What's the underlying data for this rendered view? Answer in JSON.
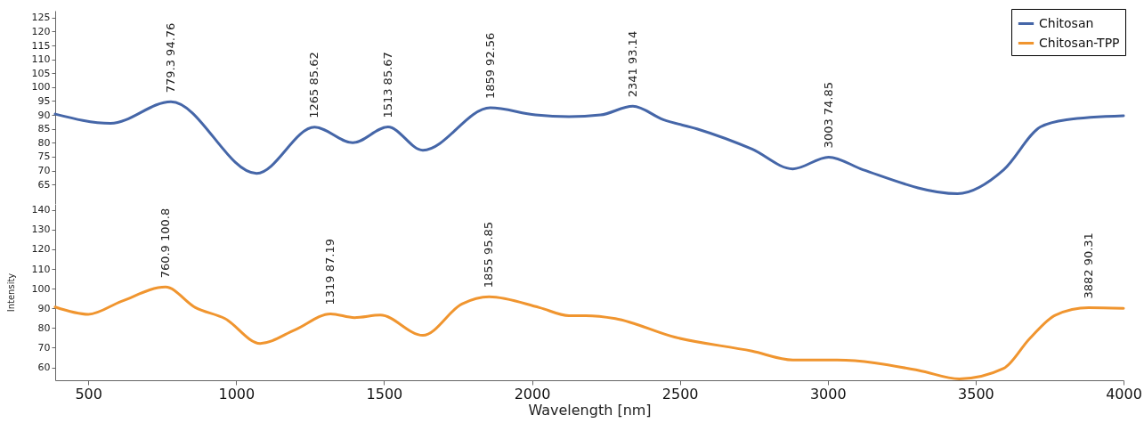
{
  "chart_data": [
    {
      "type": "line",
      "xlim": [
        388,
        4000
      ],
      "xticks": [
        500,
        1000,
        1500,
        2000,
        2500,
        3000,
        3500,
        4000
      ],
      "ylim": [
        58,
        127.5
      ],
      "yticks": [
        65,
        70,
        75,
        80,
        85,
        90,
        95,
        100,
        105,
        110,
        115,
        120,
        125
      ],
      "tick_labels": "y",
      "legend": "top right",
      "series": [
        {
          "name": "Chitosan",
          "color": "#4566a8",
          "x": [
            388,
            575,
            779.3,
            1069,
            1265,
            1394,
            1513,
            1631,
            1859,
            2012,
            2125,
            2232,
            2341,
            2444,
            2558,
            2744,
            2882,
            3003,
            3119,
            3439,
            3595,
            3719,
            3807,
            4000
          ],
          "values": [
            90.3,
            87,
            94.76,
            69,
            85.62,
            80,
            85.67,
            77.3,
            92.56,
            90,
            89.4,
            90,
            93.14,
            88.3,
            85,
            77.7,
            70.6,
            74.85,
            70.3,
            61.7,
            70.3,
            85.7,
            88.3,
            89.7
          ]
        }
      ],
      "annotations": [
        {
          "text": "779.3  94.76",
          "x": 779.3,
          "y": 94.76
        },
        {
          "text": "1265  85.62",
          "x": 1265,
          "y": 85.62
        },
        {
          "text": "1513  85.67",
          "x": 1513,
          "y": 85.67
        },
        {
          "text": "1859  92.56",
          "x": 1859,
          "y": 92.56
        },
        {
          "text": "2341  93.14",
          "x": 2341,
          "y": 93.14
        },
        {
          "text": "3003  74.85",
          "x": 3003,
          "y": 74.85
        }
      ]
    },
    {
      "type": "line",
      "xlabel": "Wavelength [nm]",
      "ylabel": "Intensity",
      "xlim": [
        388,
        4000
      ],
      "xticks": [
        500,
        1000,
        1500,
        2000,
        2500,
        3000,
        3500,
        4000
      ],
      "ylim": [
        53.5,
        143
      ],
      "yticks": [
        60,
        70,
        80,
        90,
        100,
        110,
        120,
        130,
        140
      ],
      "series": [
        {
          "name": "Chitosan-TPP",
          "color": "#f0952f",
          "x": [
            388,
            500,
            612,
            760.9,
            862,
            962,
            1081,
            1199,
            1319,
            1400,
            1487,
            1631,
            1763,
            1855,
            2025,
            2125,
            2182,
            2282,
            2482,
            2744,
            2882,
            3032,
            3308,
            3445,
            3595,
            3682,
            3770,
            3882,
            4000
          ],
          "values": [
            90.7,
            87,
            93.6,
            100.8,
            90.4,
            84.8,
            72.2,
            79.1,
            87.19,
            85.3,
            86.6,
            76.3,
            92.2,
            95.85,
            90.4,
            86.3,
            86.3,
            84.8,
            75.4,
            68.3,
            63.8,
            63.8,
            58.5,
            54.2,
            59.5,
            74.5,
            86.6,
            90.31,
            90
          ]
        }
      ],
      "annotations": [
        {
          "text": "760.9  100.8",
          "x": 760.9,
          "y": 100.8
        },
        {
          "text": "1319  87.19",
          "x": 1319,
          "y": 87.19
        },
        {
          "text": "1855  95.85",
          "x": 1855,
          "y": 95.85
        },
        {
          "text": "3882  90.31",
          "x": 3882,
          "y": 90.31
        }
      ]
    }
  ]
}
